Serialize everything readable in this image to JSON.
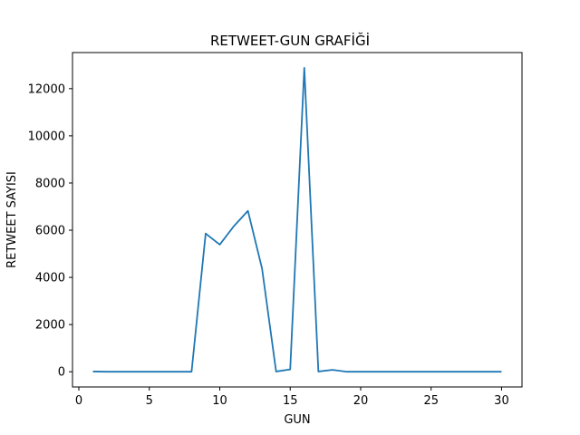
{
  "chart_data": {
    "type": "line",
    "title": "RETWEET-GUN GRAFİĞİ",
    "xlabel": "GUN",
    "ylabel": "RETWEET SAYISI",
    "xlim": [
      -0.45,
      31.45
    ],
    "ylim": [
      -645,
      13530
    ],
    "xticks": [
      0,
      5,
      10,
      15,
      20,
      25,
      30
    ],
    "yticks": [
      0,
      2000,
      4000,
      6000,
      8000,
      10000,
      12000
    ],
    "grid": false,
    "line_color": "#1f77b4",
    "series": [
      {
        "x": [
          1,
          2,
          3,
          4,
          5,
          6,
          7,
          8,
          9,
          10,
          11,
          12,
          13,
          14,
          15,
          16,
          17,
          18,
          19,
          20,
          21,
          22,
          23,
          24,
          25,
          26,
          27,
          28,
          29,
          30
        ],
        "values": [
          10,
          0,
          0,
          0,
          0,
          0,
          0,
          0,
          5860,
          5390,
          6170,
          6820,
          4380,
          10,
          100,
          12880,
          10,
          80,
          0,
          0,
          0,
          0,
          0,
          0,
          0,
          0,
          0,
          0,
          0,
          0
        ]
      }
    ]
  }
}
